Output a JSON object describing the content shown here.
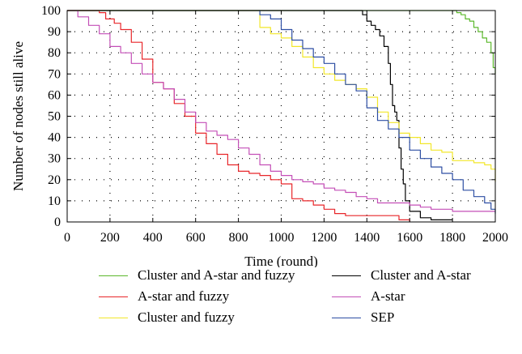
{
  "chart_data": {
    "type": "line",
    "title": "",
    "xlabel": "Time (round)",
    "ylabel": "Number of nodes still alive",
    "xlim": [
      0,
      2000
    ],
    "ylim": [
      0,
      100
    ],
    "xticks": [
      "0",
      "200",
      "400",
      "600",
      "800",
      "1000",
      "1200",
      "1400",
      "1600",
      "1800",
      "2000"
    ],
    "yticks": [
      "0",
      "10",
      "20",
      "30",
      "40",
      "50",
      "60",
      "70",
      "80",
      "90",
      "100"
    ],
    "grid": "dotted",
    "legend_position": "below",
    "series": [
      {
        "name": "Cluster and A-star and fuzzy",
        "color": "#5cb82c",
        "x": [
          0,
          1800,
          1820,
          1840,
          1860,
          1880,
          1900,
          1920,
          1940,
          1960,
          1980,
          1990,
          2000
        ],
        "y": [
          100,
          100,
          99,
          98,
          96,
          95,
          92,
          90,
          87,
          85,
          80,
          73,
          70
        ]
      },
      {
        "name": "Cluster and A-star",
        "color": "#000000",
        "x": [
          0,
          1360,
          1380,
          1400,
          1420,
          1440,
          1460,
          1480,
          1500,
          1510,
          1520,
          1530,
          1540,
          1550,
          1560,
          1570,
          1580,
          1600,
          1650,
          1700,
          1800
        ],
        "y": [
          100,
          100,
          98,
          95,
          93,
          91,
          88,
          83,
          75,
          65,
          55,
          52,
          48,
          35,
          25,
          18,
          10,
          5,
          2,
          1,
          1
        ]
      },
      {
        "name": "A-star and fuzzy",
        "color": "#e8262a",
        "x": [
          0,
          150,
          180,
          220,
          250,
          300,
          350,
          400,
          450,
          500,
          550,
          600,
          650,
          700,
          750,
          800,
          850,
          900,
          950,
          1000,
          1050,
          1100,
          1150,
          1200,
          1250,
          1300,
          1350,
          1400,
          1450,
          1500,
          1550,
          1600
        ],
        "y": [
          100,
          99,
          96,
          94,
          91,
          85,
          77,
          66,
          63,
          56,
          50,
          42,
          37,
          32,
          27,
          24,
          23,
          22,
          20,
          18,
          11,
          10,
          8,
          6,
          4,
          3,
          3,
          3,
          3,
          3,
          1,
          0
        ]
      },
      {
        "name": "A-star",
        "color": "#c44fb7",
        "x": [
          0,
          50,
          100,
          150,
          200,
          250,
          300,
          350,
          400,
          450,
          500,
          550,
          600,
          650,
          700,
          750,
          800,
          850,
          900,
          950,
          1000,
          1050,
          1100,
          1150,
          1200,
          1250,
          1300,
          1350,
          1400,
          1450,
          1500,
          1550,
          1600,
          1650,
          1700,
          1800,
          1900,
          2000
        ],
        "y": [
          100,
          97,
          93,
          89,
          83,
          80,
          75,
          70,
          66,
          63,
          58,
          52,
          47,
          43,
          41,
          39,
          35,
          32,
          27,
          24,
          22,
          20,
          19,
          18,
          16,
          15,
          14,
          12,
          11,
          9,
          9,
          9,
          8,
          7,
          6,
          5,
          5,
          5
        ]
      },
      {
        "name": "Cluster and fuzzy",
        "color": "#f2e72a",
        "x": [
          0,
          880,
          900,
          950,
          1000,
          1050,
          1100,
          1150,
          1200,
          1250,
          1300,
          1350,
          1400,
          1450,
          1500,
          1550,
          1600,
          1650,
          1700,
          1750,
          1800,
          1850,
          1900,
          1950,
          1980,
          2000
        ],
        "y": [
          100,
          100,
          92,
          89,
          87,
          83,
          78,
          73,
          70,
          67,
          65,
          63,
          59,
          52,
          47,
          42,
          40,
          37,
          34,
          33,
          29,
          29,
          28,
          27,
          25,
          19
        ]
      },
      {
        "name": "SEP",
        "color": "#2d4ea3",
        "x": [
          0,
          880,
          900,
          950,
          1000,
          1050,
          1100,
          1150,
          1200,
          1250,
          1300,
          1350,
          1400,
          1450,
          1500,
          1550,
          1600,
          1650,
          1700,
          1750,
          1800,
          1850,
          1900,
          1950,
          1980,
          2000
        ],
        "y": [
          100,
          100,
          98,
          96,
          91,
          86,
          82,
          78,
          75,
          70,
          65,
          62,
          54,
          48,
          44,
          40,
          34,
          30,
          26,
          23,
          20,
          15,
          12,
          9,
          6,
          4
        ]
      }
    ],
    "legend_order": [
      0,
      1,
      2,
      3,
      4,
      5
    ]
  }
}
